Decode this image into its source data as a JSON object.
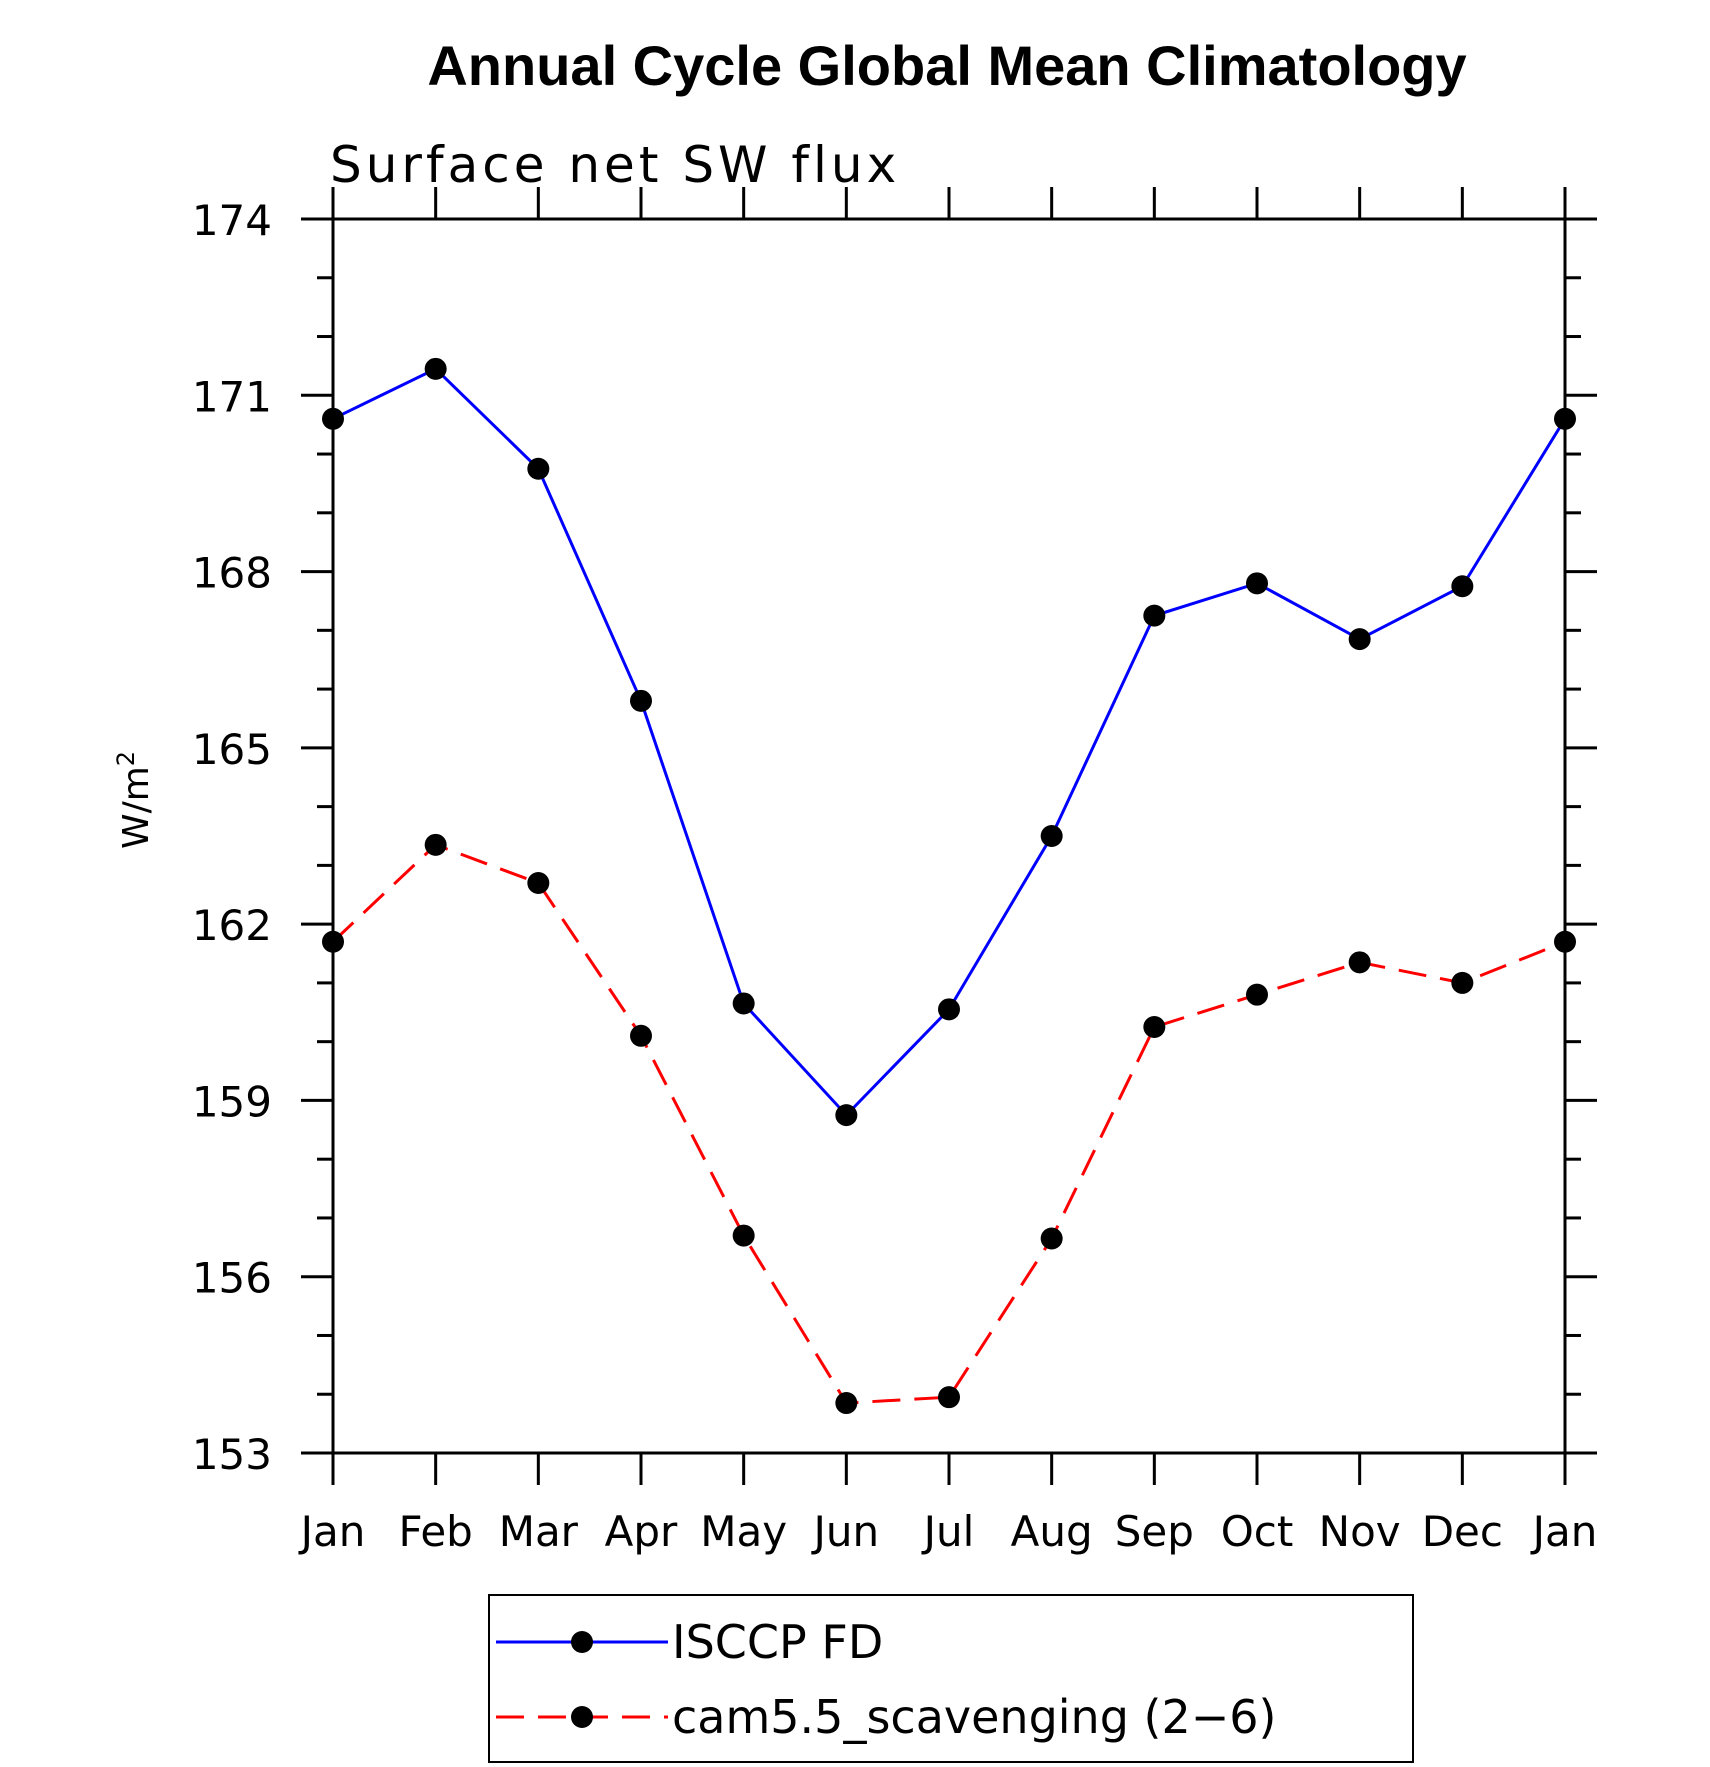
{
  "chart_data": {
    "type": "line",
    "title": "Annual Cycle Global Mean Climatology",
    "subtitle": "Surface net SW flux",
    "ylabel": "W/m",
    "ylabel_sup": "2",
    "xlabel": "",
    "categories": [
      "Jan",
      "Feb",
      "Mar",
      "Apr",
      "May",
      "Jun",
      "Jul",
      "Aug",
      "Sep",
      "Oct",
      "Nov",
      "Dec",
      "Jan"
    ],
    "ylim": [
      153,
      174
    ],
    "yticks": [
      153,
      156,
      159,
      162,
      165,
      168,
      171,
      174
    ],
    "grid": false,
    "legend_position": "bottom",
    "series": [
      {
        "name": "ISCCP FD",
        "color": "#0000ff",
        "style": "solid",
        "marker": "filled-circle",
        "values": [
          170.6,
          171.45,
          169.75,
          165.8,
          160.65,
          158.75,
          160.55,
          163.5,
          167.25,
          167.8,
          166.85,
          167.75,
          170.6
        ]
      },
      {
        "name": "cam5.5_scavenging (2−6)",
        "color": "#ff0000",
        "style": "dashed",
        "marker": "filled-circle",
        "values": [
          161.7,
          163.35,
          162.7,
          160.1,
          156.7,
          153.85,
          153.95,
          156.65,
          160.25,
          160.8,
          161.35,
          161.0,
          161.7
        ]
      }
    ]
  }
}
